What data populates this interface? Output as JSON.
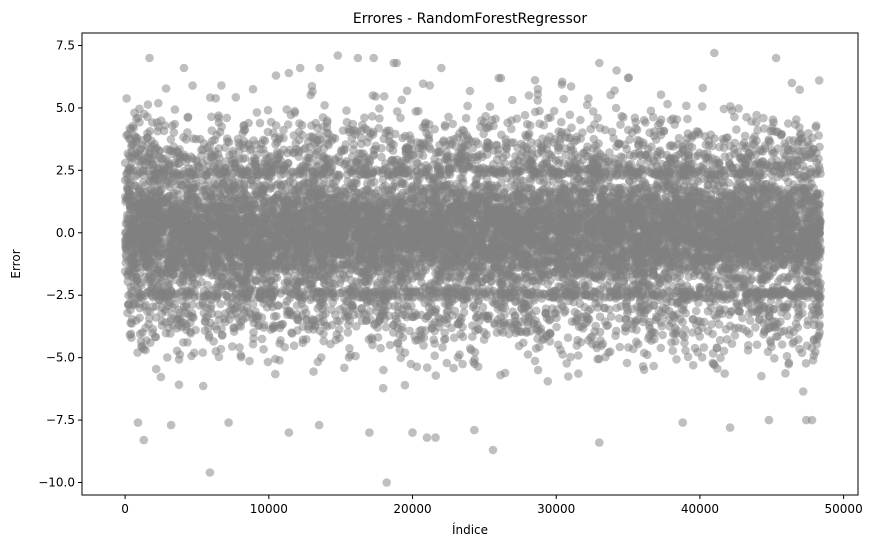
{
  "chart_data": {
    "type": "scatter",
    "title": "Errores - RandomForestRegressor",
    "xlabel": "Índice",
    "ylabel": "Error",
    "xlim": [
      -3000,
      51000
    ],
    "ylim": [
      -10.5,
      8.0
    ],
    "xticks": [
      0,
      10000,
      20000,
      30000,
      40000,
      50000
    ],
    "xtick_labels": [
      "0",
      "10000",
      "20000",
      "30000",
      "40000",
      "50000"
    ],
    "yticks": [
      -10.0,
      -7.5,
      -5.0,
      -2.5,
      0.0,
      2.5,
      5.0,
      7.5
    ],
    "ytick_labels": [
      "−10.0",
      "−7.5",
      "−5.0",
      "−2.5",
      "0.0",
      "2.5",
      "5.0",
      "7.5"
    ],
    "grid": false,
    "marker_color": "#808080",
    "marker_alpha": 0.5,
    "n_points": 48400,
    "x_range": [
      0,
      48400
    ],
    "dense_band": [
      -2.5,
      2.5
    ],
    "points": [
      [
        1700,
        7.0
      ],
      [
        4100,
        6.6
      ],
      [
        11400,
        6.4
      ],
      [
        14800,
        7.1
      ],
      [
        16200,
        7.0
      ],
      [
        17300,
        7.0
      ],
      [
        18700,
        6.8
      ],
      [
        18900,
        6.8
      ],
      [
        33000,
        6.8
      ],
      [
        34200,
        6.5
      ],
      [
        41000,
        7.2
      ],
      [
        45300,
        7.0
      ],
      [
        48300,
        6.1
      ],
      [
        26000,
        6.2
      ],
      [
        6700,
        5.9
      ],
      [
        10500,
        6.3
      ],
      [
        21200,
        5.9
      ],
      [
        35000,
        6.2
      ],
      [
        40200,
        5.8
      ],
      [
        46400,
        6.0
      ],
      [
        5900,
        -9.6
      ],
      [
        18200,
        -10.0
      ],
      [
        1300,
        -8.3
      ],
      [
        25600,
        -8.7
      ],
      [
        33000,
        -8.4
      ],
      [
        21000,
        -8.2
      ],
      [
        21600,
        -8.2
      ],
      [
        20000,
        -8.0
      ],
      [
        11400,
        -8.0
      ],
      [
        17000,
        -8.0
      ],
      [
        900,
        -7.6
      ],
      [
        3200,
        -7.7
      ],
      [
        7200,
        -7.6
      ],
      [
        13500,
        -7.7
      ],
      [
        24300,
        -7.9
      ],
      [
        38800,
        -7.6
      ],
      [
        42100,
        -7.8
      ],
      [
        44800,
        -7.5
      ],
      [
        47400,
        -7.5
      ],
      [
        47800,
        -7.5
      ]
    ]
  }
}
